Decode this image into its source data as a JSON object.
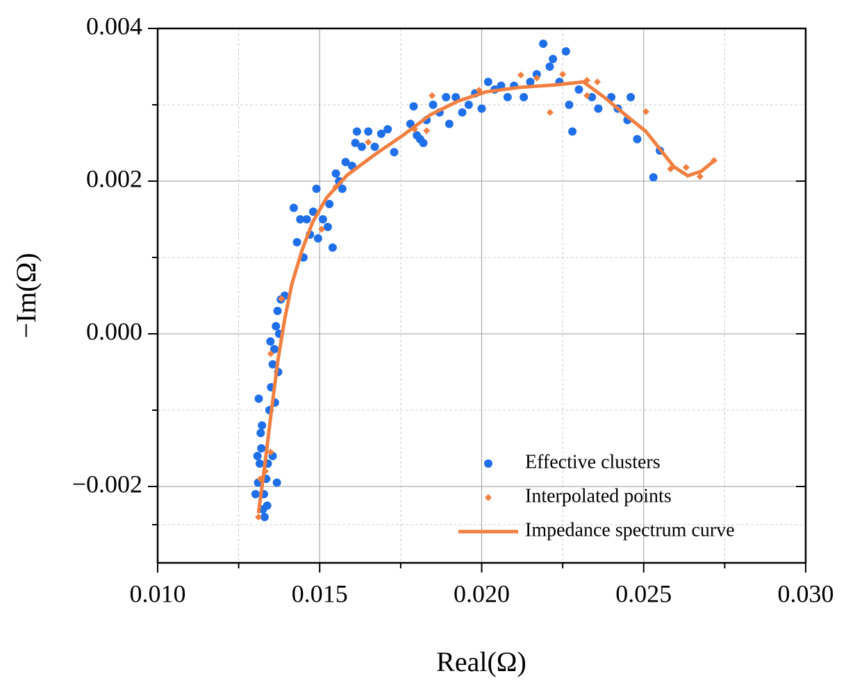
{
  "chart_data": {
    "type": "scatter",
    "xlabel": "Real(Ω)",
    "ylabel": "−Im(Ω)",
    "xlim": [
      0.01,
      0.03
    ],
    "ylim": [
      -0.003,
      0.004
    ],
    "xticks": [
      {
        "value": 0.01,
        "label": "0.010"
      },
      {
        "value": 0.015,
        "label": "0.015"
      },
      {
        "value": 0.02,
        "label": "0.020"
      },
      {
        "value": 0.025,
        "label": "0.025"
      },
      {
        "value": 0.03,
        "label": "0.030"
      }
    ],
    "yticks": [
      {
        "value": -0.002,
        "label": "−0.002"
      },
      {
        "value": 0.0,
        "label": "0.000"
      },
      {
        "value": 0.002,
        "label": "0.002"
      },
      {
        "value": 0.004,
        "label": "0.004"
      }
    ],
    "grid": true,
    "legend": "lower right",
    "series": [
      {
        "name": "Effective clusters",
        "type": "scatter",
        "marker": "circle",
        "color": "#1f6fe8",
        "x": [
          0.01302,
          0.0131,
          0.01315,
          0.01308,
          0.0132,
          0.01325,
          0.0133,
          0.01318,
          0.01322,
          0.01312,
          0.01335,
          0.0134,
          0.01328,
          0.01345,
          0.0135,
          0.01355,
          0.01348,
          0.0136,
          0.01365,
          0.0137,
          0.01372,
          0.01362,
          0.01375,
          0.0138,
          0.01368,
          0.01355,
          0.01338,
          0.01392,
          0.0142,
          0.0143,
          0.0144,
          0.0145,
          0.0146,
          0.0147,
          0.0148,
          0.0149,
          0.01495,
          0.0151,
          0.01525,
          0.0154,
          0.0153,
          0.0155,
          0.0156,
          0.0157,
          0.0158,
          0.016,
          0.0161,
          0.01615,
          0.0163,
          0.0165,
          0.0167,
          0.0169,
          0.0171,
          0.0173,
          0.0178,
          0.0179,
          0.018,
          0.0181,
          0.0182,
          0.0183,
          0.0185,
          0.0187,
          0.0189,
          0.019,
          0.0192,
          0.0194,
          0.0196,
          0.0198,
          0.02,
          0.0202,
          0.0204,
          0.0206,
          0.0208,
          0.021,
          0.0213,
          0.0215,
          0.0217,
          0.0219,
          0.0221,
          0.0222,
          0.0224,
          0.0226,
          0.0227,
          0.0228,
          0.023,
          0.0234,
          0.0236,
          0.024,
          0.0242,
          0.0246,
          0.0245,
          0.0248,
          0.0253,
          0.0255
        ],
        "y": [
          -0.0021,
          -0.00195,
          -0.0017,
          -0.0016,
          -0.0015,
          -0.0023,
          -0.0024,
          -0.0013,
          -0.0012,
          -0.00085,
          -0.0019,
          -0.0017,
          -0.0021,
          -0.001,
          -0.0007,
          -0.0004,
          -0.0001,
          -0.0002,
          0.0001,
          0.0003,
          -0.0005,
          -0.0009,
          0.0,
          0.00045,
          -0.00195,
          -0.0016,
          -0.00225,
          0.0005,
          0.00165,
          0.0012,
          0.0015,
          0.001,
          0.0015,
          0.0013,
          0.0016,
          0.0019,
          0.00125,
          0.0015,
          0.0014,
          0.00113,
          0.0017,
          0.0021,
          0.002,
          0.0019,
          0.00225,
          0.0022,
          0.0025,
          0.00265,
          0.00245,
          0.00265,
          0.00245,
          0.00262,
          0.00268,
          0.00238,
          0.00275,
          0.00298,
          0.0026,
          0.00255,
          0.0025,
          0.0028,
          0.003,
          0.0029,
          0.0031,
          0.00275,
          0.0031,
          0.0029,
          0.003,
          0.00315,
          0.00295,
          0.0033,
          0.0032,
          0.00325,
          0.0031,
          0.00325,
          0.0031,
          0.0033,
          0.0034,
          0.0038,
          0.0035,
          0.0036,
          0.0033,
          0.0037,
          0.003,
          0.00265,
          0.0032,
          0.0031,
          0.00295,
          0.0031,
          0.00295,
          0.0031,
          0.0028,
          0.00255,
          0.00205,
          0.0024
        ]
      },
      {
        "name": "Interpolated points",
        "type": "scatter",
        "marker": "diamond",
        "color": "#f07f40",
        "x": [
          0.01311,
          0.01317,
          0.01332,
          0.01349,
          0.01349,
          0.01382,
          0.01506,
          0.01549,
          0.0165,
          0.01793,
          0.0183,
          0.01847,
          0.01992,
          0.02121,
          0.0217,
          0.02211,
          0.0225,
          0.02325,
          0.02357,
          0.02325,
          0.02507,
          0.02583,
          0.02631,
          0.02674,
          0.02717
        ],
        "y": [
          -0.0024,
          -0.0019,
          -0.0018,
          -0.00155,
          -0.00026,
          0.00046,
          0.00137,
          0.00192,
          0.00251,
          0.00268,
          0.00266,
          0.00312,
          0.00319,
          0.00339,
          0.00335,
          0.0029,
          0.0034,
          0.00332,
          0.0033,
          0.00312,
          0.00291,
          0.00216,
          0.00218,
          0.00206,
          0.00227
        ]
      },
      {
        "name": "Impedance spectrum curve",
        "type": "line",
        "color": "#f07f40",
        "x": [
          0.01311,
          0.01328,
          0.01349,
          0.01371,
          0.01392,
          0.01414,
          0.01446,
          0.01478,
          0.01521,
          0.01585,
          0.01671,
          0.01757,
          0.01842,
          0.01928,
          0.02014,
          0.02121,
          0.02228,
          0.02314,
          0.02378,
          0.02443,
          0.02507,
          0.0255,
          0.02593,
          0.02636,
          0.02678,
          0.02721
        ],
        "y": [
          -0.00235,
          -0.00181,
          -0.00108,
          -0.00035,
          0.00019,
          0.00065,
          0.0011,
          0.00146,
          0.00178,
          0.00208,
          0.00235,
          0.0026,
          0.00287,
          0.00305,
          0.00317,
          0.00323,
          0.00326,
          0.0033,
          0.0031,
          0.00287,
          0.00265,
          0.00242,
          0.00219,
          0.00207,
          0.00213,
          0.00228
        ]
      }
    ]
  }
}
